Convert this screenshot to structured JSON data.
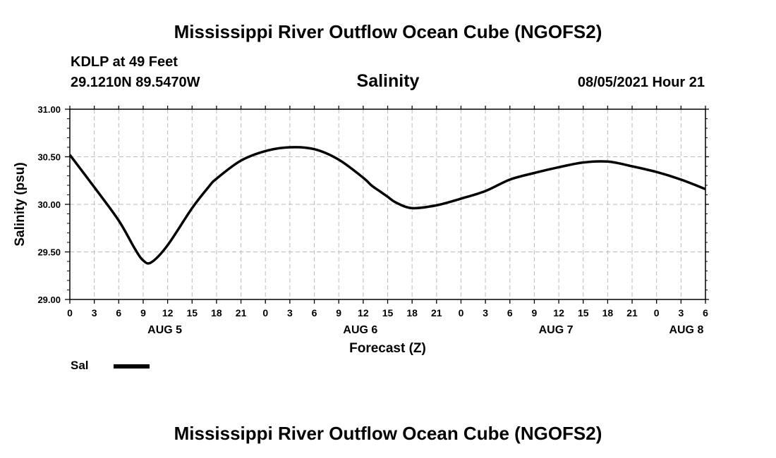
{
  "header": {
    "title": "Mississippi River Outflow Ocean Cube (NGOFS2)",
    "station": "KDLP at 49 Feet",
    "coords": "29.1210N  89.5470W",
    "variable": "Salinity",
    "datetime": "08/05/2021 Hour 21"
  },
  "footer": {
    "title": "Mississippi River Outflow Ocean Cube (NGOFS2)"
  },
  "legend": {
    "label": "Sal",
    "color": "#000000"
  },
  "chart_data": {
    "type": "line",
    "title": "Salinity",
    "xlabel": "Forecast (Z)",
    "ylabel": "Salinity (psu)",
    "x_unit": "hours from AUG 5 00Z",
    "xlim": [
      0,
      78
    ],
    "ylim": [
      29.0,
      31.0
    ],
    "grid": true,
    "y_ticks": [
      "29.00",
      "29.50",
      "30.00",
      "30.50",
      "31.00"
    ],
    "x_ticks": [
      "0",
      "3",
      "6",
      "9",
      "12",
      "15",
      "18",
      "21",
      "0",
      "3",
      "6",
      "9",
      "12",
      "15",
      "18",
      "21",
      "0",
      "3",
      "6",
      "9",
      "12",
      "15",
      "18",
      "21",
      "0",
      "3",
      "6"
    ],
    "day_labels": [
      {
        "label": "AUG 5",
        "hour": 12
      },
      {
        "label": "AUG 6",
        "hour": 36
      },
      {
        "label": "AUG 7",
        "hour": 60
      },
      {
        "label": "AUG 8",
        "hour": 76
      }
    ],
    "series": [
      {
        "name": "Sal",
        "x": [
          0,
          3,
          6,
          8,
          9,
          10,
          12,
          15,
          17,
          18,
          21,
          24,
          27,
          30,
          33,
          36,
          37,
          38,
          39,
          40,
          42,
          45,
          48,
          51,
          54,
          57,
          60,
          63,
          66,
          69,
          72,
          75,
          78
        ],
        "values": [
          30.52,
          30.18,
          29.83,
          29.53,
          29.41,
          29.39,
          29.57,
          29.96,
          30.18,
          30.27,
          30.46,
          30.56,
          30.6,
          30.58,
          30.47,
          30.28,
          30.2,
          30.14,
          30.08,
          30.02,
          29.96,
          29.99,
          30.06,
          30.14,
          30.26,
          30.33,
          30.39,
          30.44,
          30.45,
          30.4,
          30.34,
          30.26,
          30.16
        ]
      }
    ]
  }
}
